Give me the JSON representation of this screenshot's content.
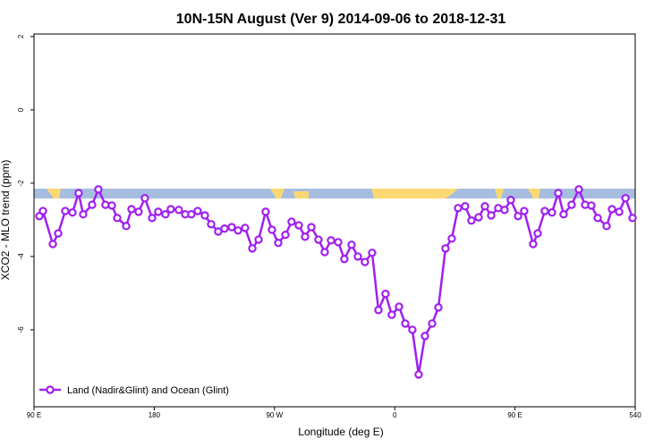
{
  "chart_data": {
    "type": "line",
    "title": "10N-15N August (Ver 9)   2014-09-06 to 2018-12-31",
    "x_label": "Longitude (deg E)",
    "y_label": "XCO2 - MLO trend (ppm)",
    "xlim": [
      90,
      540
    ],
    "xticks": [
      {
        "value": 90,
        "label": "90 E"
      },
      180,
      {
        "value": 270,
        "label": "90 W"
      },
      {
        "value": 360,
        "label": "0"
      },
      {
        "value": 450,
        "label": "90 E"
      },
      540
    ],
    "ylim": [
      -8.1,
      2.07
    ],
    "yticks": [
      2,
      0,
      -2,
      -4,
      -6
    ],
    "legend": "bottom-left",
    "series": [
      {
        "name": "Land (Nadir&Glint) and Ocean (Glint)",
        "color": "#a020f0",
        "x": [
          94,
          96.7,
          104.1,
          108.1,
          113.4,
          118.8,
          123.4,
          126.8,
          133.5,
          138.2,
          143.5,
          148.3,
          152.3,
          159,
          163,
          168.3,
          173,
          178.4,
          183,
          188.4,
          192.4,
          198.4,
          203.2,
          207.8,
          212.5,
          217.9,
          222.6,
          227.9,
          232.6,
          238,
          242.7,
          248,
          253.4,
          258.1,
          263.4,
          268.1,
          272.8,
          278.2,
          282.8,
          288.2,
          292.9,
          297.6,
          302.9,
          307.6,
          312.3,
          317.7,
          322.3,
          327.7,
          332.4,
          337.7,
          343.1,
          347.8,
          353.1,
          357.8,
          363.2,
          367.9,
          373.2,
          377.9,
          382.6,
          388,
          392.7,
          398,
          402.7,
          407.4,
          412.7,
          417.4,
          422.8,
          427.5,
          432.2,
          437.5,
          442.2,
          446.9,
          452.3,
          456.9,
          463.6,
          467,
          472.3,
          477.7,
          482.4,
          486.4,
          492.4,
          497.8,
          502.5,
          507.2,
          511.9,
          518.6,
          522.6,
          528,
          532.7,
          538
        ],
        "values": [
          -2.9,
          -2.76,
          -3.66,
          -3.37,
          -2.76,
          -2.8,
          -2.27,
          -2.85,
          -2.59,
          -2.17,
          -2.59,
          -2.61,
          -2.95,
          -3.17,
          -2.71,
          -2.78,
          -2.41,
          -2.95,
          -2.78,
          -2.85,
          -2.71,
          -2.73,
          -2.85,
          -2.85,
          -2.76,
          -2.88,
          -3.12,
          -3.32,
          -3.24,
          -3.2,
          -3.29,
          -3.22,
          -3.78,
          -3.54,
          -2.78,
          -3.27,
          -3.63,
          -3.41,
          -3.05,
          -3.15,
          -3.46,
          -3.2,
          -3.54,
          -3.88,
          -3.56,
          -3.61,
          -4.07,
          -3.68,
          -4.0,
          -4.15,
          -3.9,
          -5.46,
          -5.02,
          -5.59,
          -5.37,
          -5.83,
          -6.0,
          -7.22,
          -6.17,
          -5.83,
          -5.39,
          -3.78,
          -3.51,
          -2.68,
          -2.63,
          -3.02,
          -2.93,
          -2.63,
          -2.88,
          -2.68,
          -2.73,
          -2.46,
          -2.9,
          -2.76,
          -3.66,
          -3.37,
          -2.76,
          -2.8,
          -2.27,
          -2.85,
          -2.59,
          -2.17,
          -2.59,
          -2.61,
          -2.95,
          -3.17,
          -2.71,
          -2.78,
          -2.41,
          -2.95
        ]
      }
    ]
  }
}
